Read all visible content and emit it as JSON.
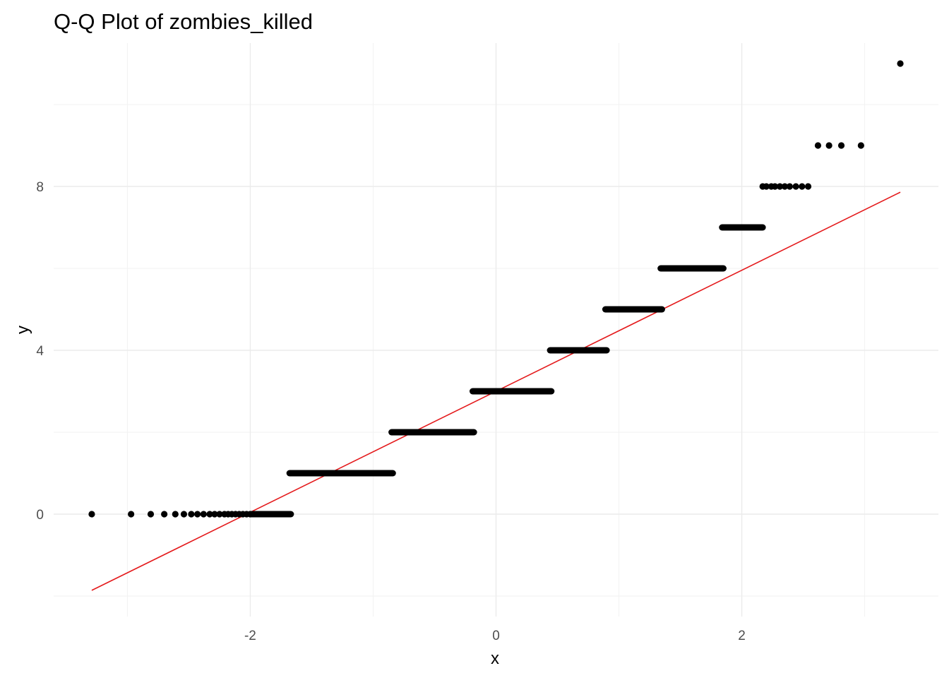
{
  "chart_data": {
    "type": "scatter",
    "title": "Q-Q Plot of zombies_killed",
    "xlabel": "x",
    "ylabel": "y",
    "xlim": [
      -3.6,
      3.6
    ],
    "ylim": [
      -2.5,
      11.5
    ],
    "x_ticks": [
      {
        "value": -2,
        "label": "-2"
      },
      {
        "value": 0,
        "label": "0"
      },
      {
        "value": 2,
        "label": "2"
      }
    ],
    "y_ticks": [
      {
        "value": 0,
        "label": "0"
      },
      {
        "value": 4,
        "label": "4"
      },
      {
        "value": 8,
        "label": "8"
      }
    ],
    "x_minor": [
      -3,
      -1,
      1,
      3
    ],
    "y_minor": [
      -2,
      2,
      6,
      10
    ],
    "grid": true,
    "point_color": "#000000",
    "line_color": "#e41a1c",
    "reference_line": {
      "x": [
        -3.29,
        3.29
      ],
      "y": [
        -1.86,
        7.86
      ]
    },
    "groups": [
      {
        "y": 0,
        "x": [
          -3.29,
          -2.97,
          -2.81,
          -2.7,
          -2.61,
          -2.54,
          -2.48,
          -2.43,
          -2.38,
          -2.33,
          -2.29,
          -2.25,
          -2.21,
          -2.18,
          -2.15,
          -2.12,
          -2.09,
          -2.06,
          -2.03,
          -2.0
        ],
        "run": [
          -2.0,
          -1.67
        ]
      },
      {
        "y": 1,
        "run": [
          -1.68,
          -0.84
        ]
      },
      {
        "y": 2,
        "run": [
          -0.85,
          -0.18
        ]
      },
      {
        "y": 3,
        "run": [
          -0.19,
          0.45
        ]
      },
      {
        "y": 4,
        "run": [
          0.44,
          0.9
        ]
      },
      {
        "y": 5,
        "run": [
          0.89,
          1.35
        ]
      },
      {
        "y": 6,
        "run": [
          1.34,
          1.85
        ]
      },
      {
        "y": 7,
        "run": [
          1.84,
          2.17
        ]
      },
      {
        "y": 8,
        "x": [
          2.17,
          2.2,
          2.24,
          2.27,
          2.31,
          2.35,
          2.39,
          2.44,
          2.49,
          2.54
        ]
      },
      {
        "y": 9,
        "x": [
          2.62,
          2.71,
          2.81,
          2.97
        ]
      },
      {
        "y": 11,
        "x": [
          3.29
        ]
      }
    ]
  }
}
